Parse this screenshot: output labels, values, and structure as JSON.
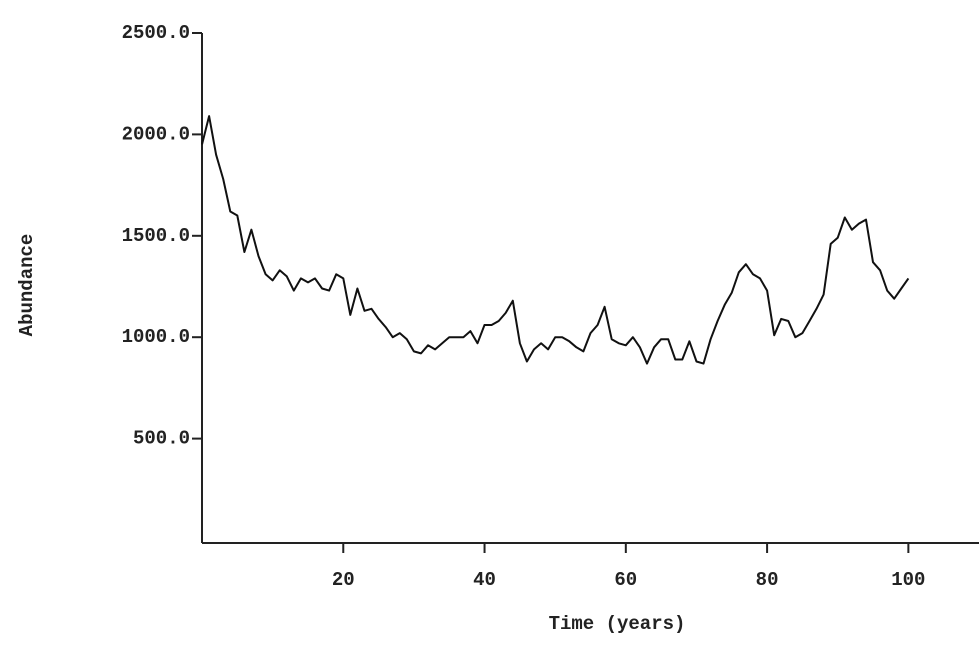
{
  "chart_data": {
    "type": "line",
    "xlabel": "Time (years)",
    "ylabel": "Abundance",
    "x": [
      0,
      1,
      2,
      3,
      4,
      5,
      6,
      7,
      8,
      9,
      10,
      11,
      12,
      13,
      14,
      15,
      16,
      17,
      18,
      19,
      20,
      21,
      22,
      23,
      24,
      25,
      26,
      27,
      28,
      29,
      30,
      31,
      32,
      33,
      34,
      35,
      36,
      37,
      38,
      39,
      40,
      41,
      42,
      43,
      44,
      45,
      46,
      47,
      48,
      49,
      50,
      51,
      52,
      53,
      54,
      55,
      56,
      57,
      58,
      59,
      60,
      61,
      62,
      63,
      64,
      65,
      66,
      67,
      68,
      69,
      70,
      71,
      72,
      73,
      74,
      75,
      76,
      77,
      78,
      79,
      80,
      81,
      82,
      83,
      84,
      85,
      86,
      87,
      88,
      89,
      90,
      91,
      92,
      93,
      94,
      95,
      96,
      97,
      98,
      99,
      100
    ],
    "values": [
      1950,
      2090,
      1900,
      1780,
      1620,
      1600,
      1420,
      1530,
      1400,
      1310,
      1280,
      1330,
      1300,
      1230,
      1290,
      1270,
      1290,
      1240,
      1230,
      1310,
      1290,
      1110,
      1240,
      1130,
      1140,
      1090,
      1050,
      1000,
      1020,
      990,
      930,
      920,
      960,
      940,
      970,
      1000,
      1000,
      1000,
      1030,
      970,
      1060,
      1060,
      1080,
      1120,
      1180,
      970,
      880,
      940,
      970,
      940,
      1000,
      1000,
      980,
      950,
      930,
      1020,
      1060,
      1150,
      990,
      970,
      960,
      1000,
      950,
      870,
      950,
      990,
      990,
      890,
      890,
      980,
      880,
      870,
      990,
      1080,
      1160,
      1220,
      1320,
      1360,
      1310,
      1290,
      1230,
      1010,
      1090,
      1080,
      1000,
      1020,
      1080,
      1140,
      1210,
      1460,
      1490,
      1590,
      1530,
      1560,
      1580,
      1370,
      1330,
      1230,
      1190,
      1240,
      1290
    ],
    "color": "#111111",
    "xlim": [
      0,
      110
    ],
    "ylim": [
      0,
      2500
    ],
    "xticks": [
      20,
      40,
      60,
      80,
      100
    ],
    "yticks": [
      {
        "value": 500,
        "label": "500.0"
      },
      {
        "value": 1000,
        "label": "1000.0"
      },
      {
        "value": 1500,
        "label": "1500.0"
      },
      {
        "value": 2000,
        "label": "2000.0"
      },
      {
        "value": 2500,
        "label": "2500.0"
      }
    ],
    "grid": false
  }
}
